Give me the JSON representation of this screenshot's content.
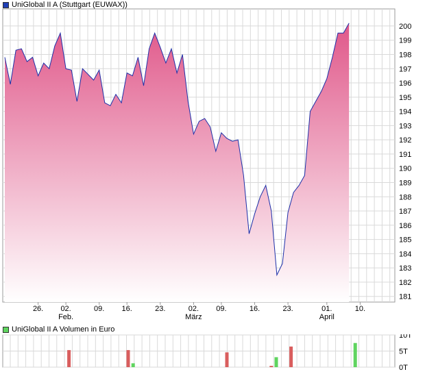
{
  "colors": {
    "price_line": "#1c2fa8",
    "price_fill_top": "#e0588a",
    "price_fill_bottom": "#ffffff",
    "grid": "#d9d9d9",
    "axis": "#999999",
    "vol_down": "#d95e5e",
    "vol_up": "#5fd45f",
    "price_swatch": "#1f3fb5",
    "volume_swatch": "#5fd45f"
  },
  "price_legend": "UniGlobal II A (Stuttgart (EUWAX))",
  "volume_legend": "UniGlobal II A Volumen in Euro",
  "chart_data": [
    {
      "type": "area",
      "series": [
        {
          "name": "UniGlobal II A (Stuttgart (EUWAX))",
          "values": [
            197.8,
            195.9,
            198.3,
            198.4,
            197.5,
            197.8,
            196.5,
            197.4,
            197.0,
            198.6,
            199.5,
            197.0,
            196.9,
            194.7,
            197.0,
            196.6,
            196.2,
            196.9,
            194.6,
            194.4,
            195.2,
            194.6,
            196.7,
            196.5,
            197.8,
            195.8,
            198.4,
            199.5,
            198.5,
            197.4,
            198.4,
            196.7,
            198.0,
            194.7,
            192.4,
            193.3,
            193.5,
            192.9,
            191.2,
            192.5,
            192.1,
            191.9,
            192.0,
            189.5,
            185.4,
            186.8,
            188.0,
            188.8,
            187.0,
            182.5,
            183.3,
            186.9,
            188.3,
            188.8,
            189.5,
            194.0,
            194.7,
            195.4,
            196.3,
            197.8,
            199.5,
            199.5,
            200.2
          ]
        }
      ],
      "x_tick_labels": [
        "26.",
        "02.",
        "09.",
        "16.",
        "23.",
        "02.",
        "09.",
        "16.",
        "23.",
        "01.",
        "10."
      ],
      "x_month_labels": [
        "Feb.",
        "März",
        "April"
      ],
      "y_ticks": [
        181,
        182,
        183,
        184,
        185,
        186,
        187,
        188,
        189,
        190,
        191,
        192,
        193,
        194,
        195,
        196,
        197,
        198,
        199,
        200
      ],
      "ylim": [
        180.6,
        201.2
      ],
      "grid": true
    },
    {
      "type": "bar",
      "y_tick_labels": [
        "10T",
        "5T",
        "0T"
      ],
      "ylim": [
        0,
        10
      ],
      "bars": [
        {
          "day": 14,
          "value": 5.3,
          "direction": "down"
        },
        {
          "day": 26,
          "value": 5.3,
          "direction": "down"
        },
        {
          "day": 27,
          "value": 1.2,
          "direction": "up"
        },
        {
          "day": 46,
          "value": 4.6,
          "direction": "down"
        },
        {
          "day": 55,
          "value": 0.4,
          "direction": "down"
        },
        {
          "day": 56,
          "value": 3.1,
          "direction": "up"
        },
        {
          "day": 59,
          "value": 6.4,
          "direction": "down"
        },
        {
          "day": 72,
          "value": 7.5,
          "direction": "up"
        }
      ]
    }
  ]
}
